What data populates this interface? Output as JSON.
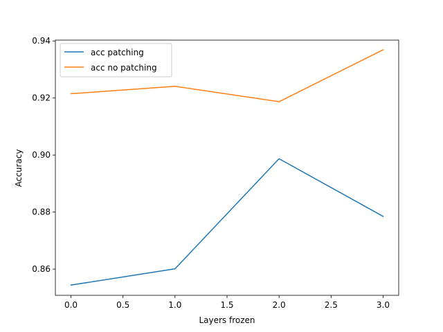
{
  "chart_data": {
    "type": "line",
    "title": "",
    "xlabel": "Layers frozen",
    "ylabel": "Accuracy",
    "x": [
      0,
      1,
      2,
      3
    ],
    "xlim": [
      -0.15,
      3.15
    ],
    "ylim": [
      0.8508,
      0.9403
    ],
    "xticks": [
      0.0,
      0.5,
      1.0,
      1.5,
      2.0,
      2.5,
      3.0
    ],
    "xtick_labels": [
      "0.0",
      "0.5",
      "1.0",
      "1.5",
      "2.0",
      "2.5",
      "3.0"
    ],
    "yticks": [
      0.86,
      0.88,
      0.9,
      0.92,
      0.94
    ],
    "ytick_labels": [
      "0.86",
      "0.88",
      "0.90",
      "0.92",
      "0.94"
    ],
    "grid": false,
    "legend_position": "top-left",
    "series": [
      {
        "name": "acc patching",
        "color": "#1f77b4",
        "values": [
          0.8544,
          0.8601,
          0.8987,
          0.8785
        ]
      },
      {
        "name": "acc no patching",
        "color": "#ff7f0e",
        "values": [
          0.9215,
          0.9241,
          0.9187,
          0.9369
        ]
      }
    ]
  }
}
